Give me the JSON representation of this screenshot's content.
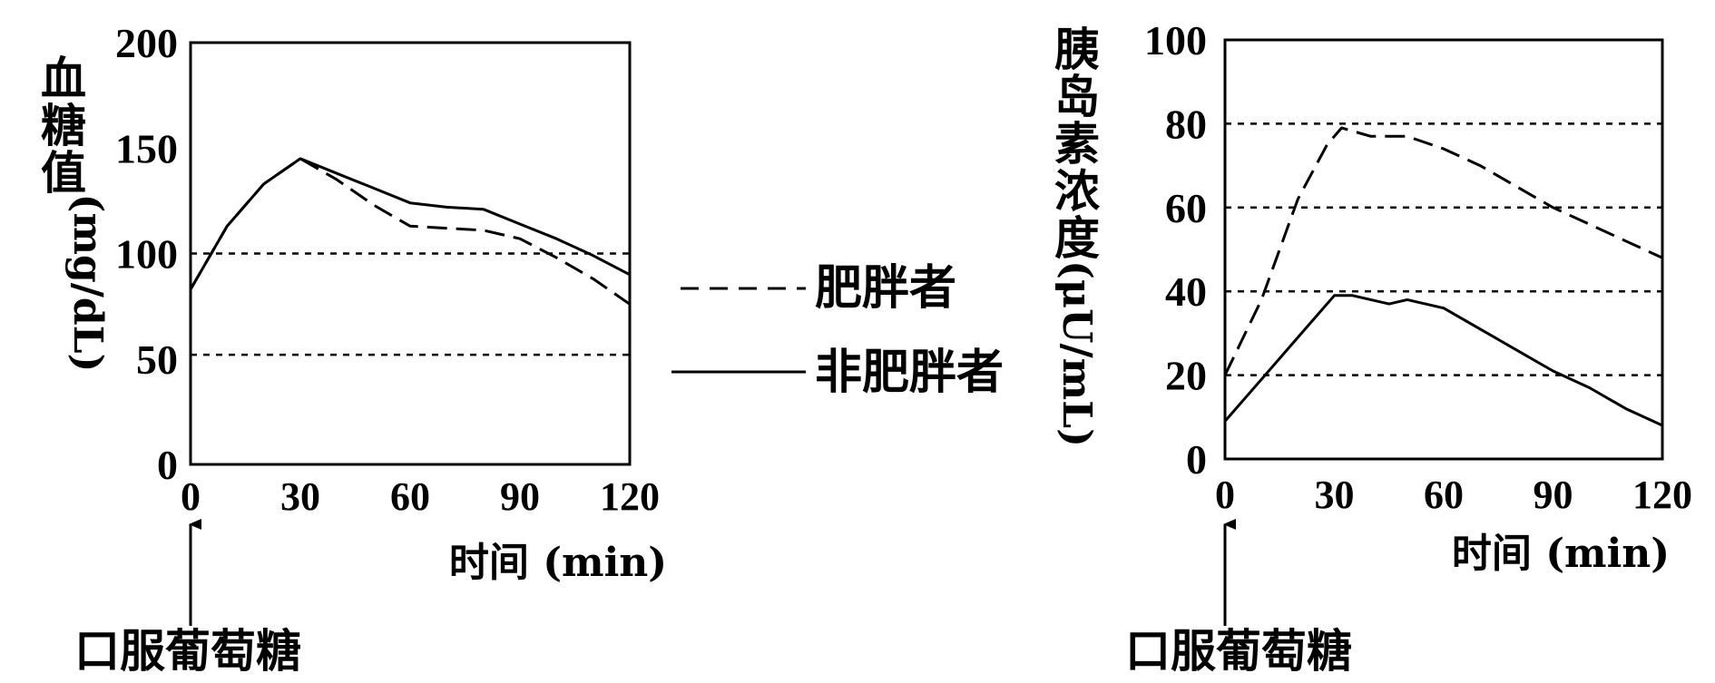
{
  "chart_data": [
    {
      "type": "line",
      "ylabel_main": "血糖值",
      "ylabel_unit": "(mg/dL)",
      "xlabel": "时间 (min)",
      "x_ticks": [
        "0",
        "30",
        "60",
        "90",
        "120"
      ],
      "y_ticks": [
        "0",
        "50",
        "100",
        "150",
        "200"
      ],
      "xlim": [
        0,
        120
      ],
      "ylim": [
        0,
        200
      ],
      "ref_lines": [
        52,
        100
      ],
      "annotation": "口服葡萄糖",
      "series": [
        {
          "name": "肥胖者",
          "style": "dashed",
          "x": [
            0,
            10,
            20,
            30,
            40,
            50,
            60,
            70,
            80,
            90,
            100,
            110,
            120
          ],
          "y": [
            83,
            113,
            133,
            145,
            135,
            123,
            113,
            112,
            111,
            107,
            98,
            88,
            76
          ]
        },
        {
          "name": "非肥胖者",
          "style": "solid",
          "x": [
            0,
            10,
            20,
            30,
            40,
            50,
            60,
            70,
            80,
            90,
            100,
            110,
            120
          ],
          "y": [
            83,
            113,
            133,
            145,
            138,
            131,
            124,
            122,
            121,
            114,
            107,
            99,
            90
          ]
        }
      ]
    },
    {
      "type": "line",
      "ylabel_main": "胰岛素浓度",
      "ylabel_unit": "(μU/mL)",
      "xlabel": "时间 (min)",
      "x_ticks": [
        "0",
        "30",
        "60",
        "90",
        "120"
      ],
      "y_ticks": [
        "0",
        "20",
        "40",
        "60",
        "80",
        "100"
      ],
      "xlim": [
        0,
        120
      ],
      "ylim": [
        0,
        100
      ],
      "ref_lines": [
        20,
        40,
        60,
        80
      ],
      "annotation": "口服葡萄糖",
      "series": [
        {
          "name": "肥胖者",
          "style": "dashed",
          "x": [
            0,
            10,
            20,
            28,
            32,
            40,
            50,
            60,
            70,
            80,
            90,
            100,
            110,
            120
          ],
          "y": [
            20,
            38,
            62,
            75,
            79,
            77,
            77,
            74,
            70,
            65,
            60,
            56,
            52,
            48
          ]
        },
        {
          "name": "非肥胖者",
          "style": "solid",
          "x": [
            0,
            10,
            20,
            30,
            35,
            40,
            45,
            50,
            55,
            60,
            70,
            80,
            90,
            100,
            110,
            120
          ],
          "y": [
            9,
            19,
            29,
            39,
            39,
            38,
            37,
            38,
            37,
            36,
            31,
            26,
            21,
            17,
            12,
            8
          ]
        }
      ]
    }
  ],
  "legend": [
    {
      "label": "肥胖者",
      "style": "dashed"
    },
    {
      "label": "非肥胖者",
      "style": "solid"
    }
  ]
}
